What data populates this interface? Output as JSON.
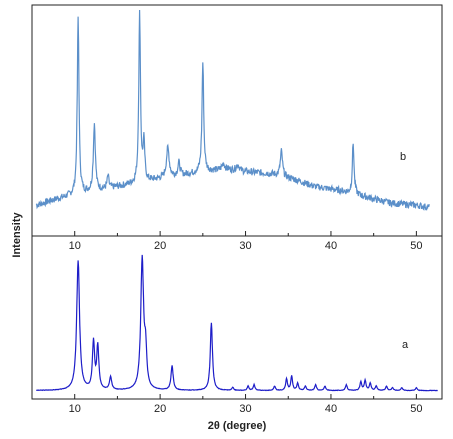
{
  "chart_data": [
    {
      "type": "line",
      "panel_label": "b",
      "xlabel": "",
      "ylabel": "Intensity",
      "xlim": [
        5,
        53
      ],
      "ylim": [
        0,
        100
      ],
      "x_ticks": [
        "10",
        "20",
        "30",
        "40",
        "50"
      ],
      "grid": false,
      "color": "#5b8fc9",
      "baseline": {
        "x": [
          5.5,
          8,
          10,
          14,
          18,
          22,
          25,
          28,
          30,
          33,
          36,
          38,
          41,
          44,
          47,
          50,
          51.5
        ],
        "y": [
          8,
          11,
          13,
          16,
          19,
          22,
          24,
          25,
          24,
          23,
          20,
          17,
          15,
          12,
          9,
          8,
          7
        ]
      },
      "peaks": [
        {
          "x": 10.4,
          "height": 84,
          "width": 0.12
        },
        {
          "x": 12.3,
          "height": 32,
          "width": 0.14
        },
        {
          "x": 13.9,
          "height": 6,
          "width": 0.12
        },
        {
          "x": 17.6,
          "height": 80,
          "width": 0.12
        },
        {
          "x": 18.1,
          "height": 18,
          "width": 0.12
        },
        {
          "x": 20.9,
          "height": 14,
          "width": 0.2
        },
        {
          "x": 22.2,
          "height": 6,
          "width": 0.15
        },
        {
          "x": 25.0,
          "height": 52,
          "width": 0.12
        },
        {
          "x": 27.4,
          "height": 3,
          "width": 0.2
        },
        {
          "x": 29.1,
          "height": 3,
          "width": 0.2
        },
        {
          "x": 34.2,
          "height": 12,
          "width": 0.15
        },
        {
          "x": 42.6,
          "height": 24,
          "width": 0.12
        }
      ]
    },
    {
      "type": "line",
      "panel_label": "a",
      "xlabel": "2θ (degree)",
      "ylabel": "",
      "xlim": [
        5,
        53
      ],
      "ylim": [
        0,
        100
      ],
      "x_ticks": [
        "10",
        "20",
        "30",
        "40",
        "50"
      ],
      "grid": false,
      "color": "#1d1dc8",
      "baseline": {
        "x": [
          5.5,
          52.5
        ],
        "y": [
          1,
          1
        ]
      },
      "peaks": [
        {
          "x": 10.4,
          "height": 90,
          "width": 0.2
        },
        {
          "x": 12.2,
          "height": 33,
          "width": 0.15
        },
        {
          "x": 12.7,
          "height": 30,
          "width": 0.15
        },
        {
          "x": 14.2,
          "height": 9,
          "width": 0.15
        },
        {
          "x": 17.9,
          "height": 91,
          "width": 0.2
        },
        {
          "x": 18.3,
          "height": 24,
          "width": 0.15
        },
        {
          "x": 21.4,
          "height": 17,
          "width": 0.15
        },
        {
          "x": 26.0,
          "height": 47,
          "width": 0.15
        },
        {
          "x": 28.5,
          "height": 2,
          "width": 0.12
        },
        {
          "x": 30.3,
          "height": 3,
          "width": 0.12
        },
        {
          "x": 31.0,
          "height": 4,
          "width": 0.12
        },
        {
          "x": 33.4,
          "height": 3,
          "width": 0.12
        },
        {
          "x": 34.8,
          "height": 8,
          "width": 0.12
        },
        {
          "x": 35.4,
          "height": 10,
          "width": 0.12
        },
        {
          "x": 36.1,
          "height": 5,
          "width": 0.12
        },
        {
          "x": 37.0,
          "height": 3,
          "width": 0.12
        },
        {
          "x": 38.2,
          "height": 4,
          "width": 0.12
        },
        {
          "x": 39.3,
          "height": 3,
          "width": 0.12
        },
        {
          "x": 41.8,
          "height": 4,
          "width": 0.12
        },
        {
          "x": 43.5,
          "height": 6,
          "width": 0.12
        },
        {
          "x": 44.0,
          "height": 7,
          "width": 0.12
        },
        {
          "x": 44.6,
          "height": 5,
          "width": 0.12
        },
        {
          "x": 45.3,
          "height": 3,
          "width": 0.12
        },
        {
          "x": 46.5,
          "height": 3,
          "width": 0.12
        },
        {
          "x": 47.2,
          "height": 2,
          "width": 0.12
        },
        {
          "x": 48.3,
          "height": 2,
          "width": 0.12
        },
        {
          "x": 50.0,
          "height": 2,
          "width": 0.12
        }
      ]
    }
  ]
}
